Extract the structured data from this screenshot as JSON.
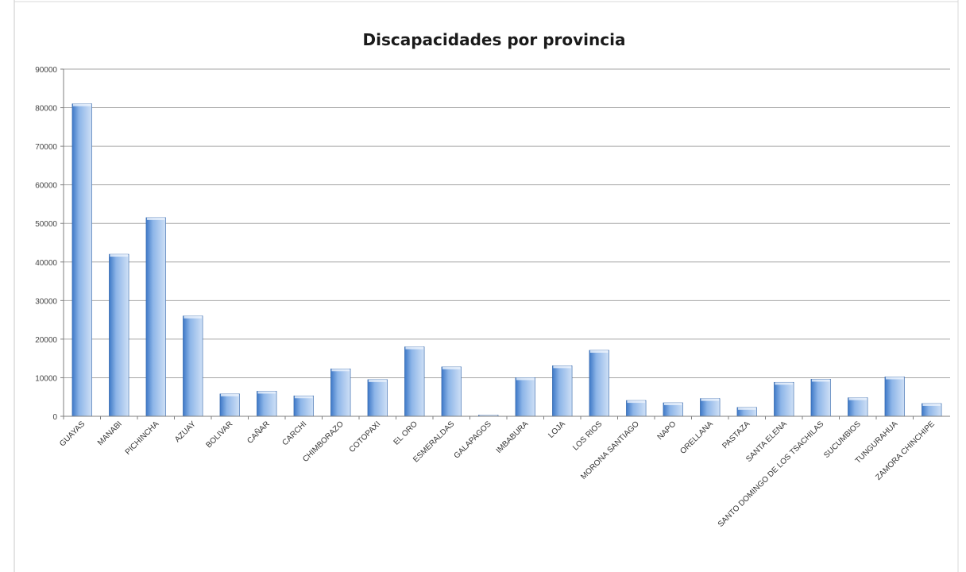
{
  "chart_data": {
    "type": "bar",
    "title": "Discapacidades por provincia",
    "xlabel": "",
    "ylabel": "",
    "ylim": [
      0,
      90000
    ],
    "yticks": [
      0,
      10000,
      20000,
      30000,
      40000,
      50000,
      60000,
      70000,
      80000,
      90000
    ],
    "grid": true,
    "legend": "none",
    "colors": {
      "bar_light": "#cfe0f6",
      "bar_mid": "#8db5e8",
      "bar_dark": "#3d78c7",
      "bar_edge": "#2f63a8",
      "grid": "#a6a6a6",
      "axis": "#7f7f7f",
      "frame": "#c8c8c8"
    },
    "categories": [
      "GUAYAS",
      "MANABI",
      "PICHINCHA",
      "AZUAY",
      "BOLIVAR",
      "CAÑAR",
      "CARCHI",
      "CHIMBORAZO",
      "COTOPAXI",
      "EL ORO",
      "ESMERALDAS",
      "GALAPAGOS",
      "IMBABURA",
      "LOJA",
      "LOS RIOS",
      "MORONA SANTIAGO",
      "NAPO",
      "ORELLANA",
      "PASTAZA",
      "SANTA ELENA",
      "SANTO DOMINGO DE LOS TSACHILAS",
      "SUCUMBIOS",
      "TUNGURAHUA",
      "ZAMORA CHINCHIPE"
    ],
    "values": [
      81000,
      42000,
      51500,
      26000,
      5800,
      6500,
      5300,
      12300,
      9500,
      18000,
      12800,
      300,
      10000,
      13100,
      17100,
      4100,
      3500,
      4600,
      2300,
      8800,
      9600,
      4800,
      10200,
      3300
    ]
  }
}
